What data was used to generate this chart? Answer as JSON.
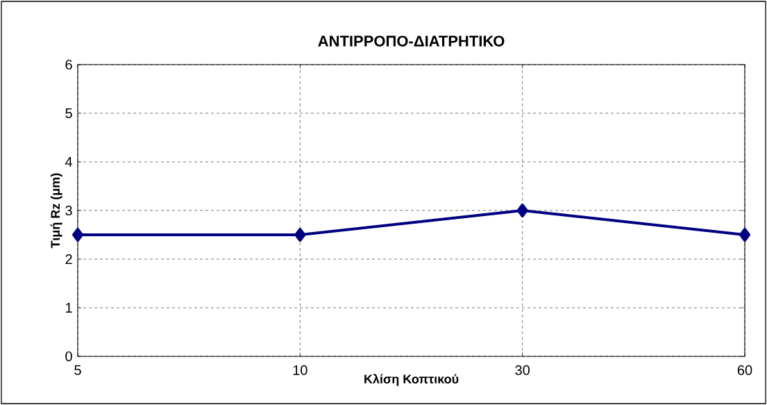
{
  "chart_data": {
    "type": "line",
    "title": "ΑΝΤΙΡΡΟΠΟ-ΔΙΑΤΡΗΤΙΚΟ",
    "xlabel": "Κλίση Κοπτικού",
    "ylabel": "Τιμή Rz (μm)",
    "categories": [
      "5",
      "10",
      "30",
      "60"
    ],
    "series": [
      {
        "color": "#000080",
        "values": [
          2.5,
          2.5,
          3,
          2.5
        ]
      }
    ],
    "ylim": [
      0,
      6
    ],
    "yticks": [
      0,
      1,
      2,
      3,
      4,
      5,
      6
    ],
    "grid": true,
    "marker": "diamond",
    "line_style": "solid"
  }
}
